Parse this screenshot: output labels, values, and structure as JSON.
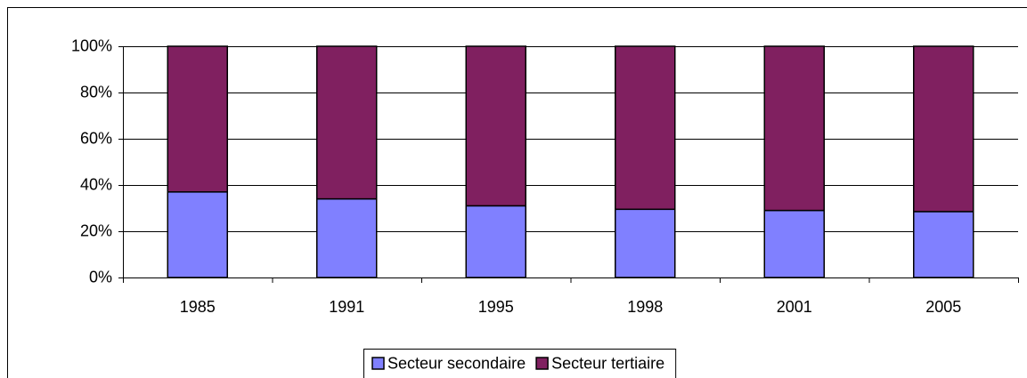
{
  "chart_data": {
    "type": "stacked_bar",
    "categories": [
      "1985",
      "1991",
      "1995",
      "1998",
      "2001",
      "2005"
    ],
    "series": [
      {
        "name": "Secteur secondaire",
        "color": "#8080ff",
        "values": [
          37,
          34,
          31,
          29.5,
          29,
          28.5
        ]
      },
      {
        "name": "Secteur tertiaire",
        "color": "#802060",
        "values": [
          63,
          66,
          69,
          70.5,
          71,
          71.5
        ]
      }
    ],
    "ylim": [
      0,
      100
    ],
    "yticks": [
      {
        "value": 0,
        "label": "0%"
      },
      {
        "value": 20,
        "label": "20%"
      },
      {
        "value": 40,
        "label": "40%"
      },
      {
        "value": 60,
        "label": "60%"
      },
      {
        "value": 80,
        "label": "80%"
      },
      {
        "value": 100,
        "label": "100%"
      }
    ],
    "grid": true,
    "legend": "bottom"
  }
}
